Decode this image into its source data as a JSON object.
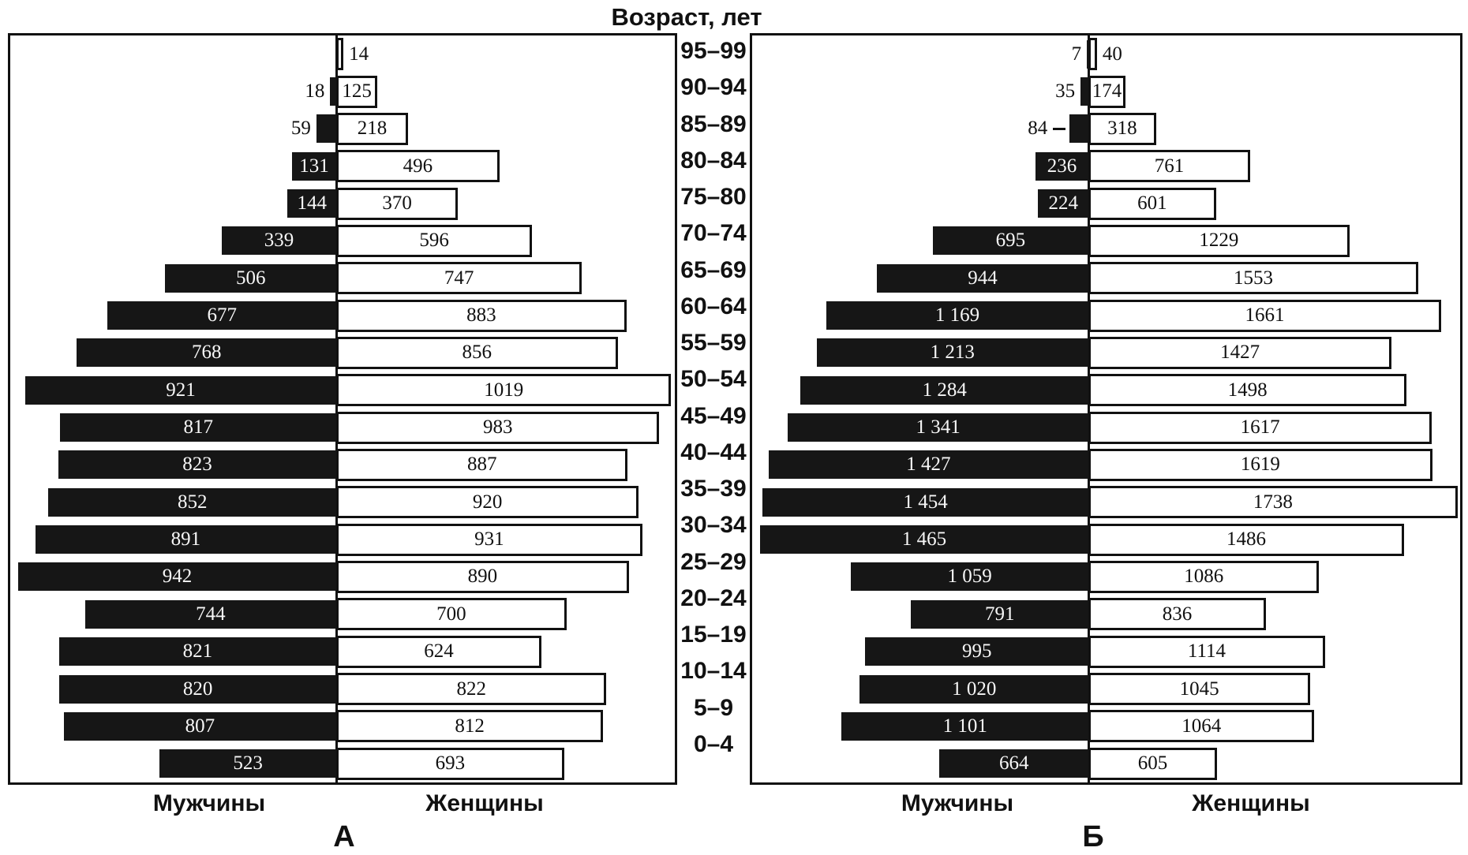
{
  "title": "Возраст, лет",
  "age_groups": [
    "95–99",
    "90–94",
    "85–89",
    "80–84",
    "75–80",
    "70–74",
    "65–69",
    "60–64",
    "55–59",
    "50–54",
    "45–49",
    "40–44",
    "35–39",
    "30–34",
    "25–29",
    "20–24",
    "15–19",
    "10–14",
    "5–9",
    "0–4"
  ],
  "panels": [
    {
      "letter": "А",
      "men_label": "Мужчины",
      "women_label": "Женщины",
      "axis_pct": 49.06,
      "men_full_scale": 965,
      "women_full_scale": 1030,
      "rows": [
        {
          "age": "95–99",
          "men": null,
          "men_text": null,
          "men_outside": false,
          "leader": false,
          "women": 14,
          "women_text": "14",
          "women_outside": true
        },
        {
          "age": "90–94",
          "men": 18,
          "men_text": "18",
          "men_outside": true,
          "leader": false,
          "women": 125,
          "women_text": "125",
          "women_outside": false
        },
        {
          "age": "85–89",
          "men": 59,
          "men_text": "59",
          "men_outside": true,
          "leader": false,
          "women": 218,
          "women_text": "218",
          "women_outside": false
        },
        {
          "age": "80–84",
          "men": 131,
          "men_text": "131",
          "men_outside": false,
          "leader": false,
          "women": 496,
          "women_text": "496",
          "women_outside": false
        },
        {
          "age": "75–80",
          "men": 144,
          "men_text": "144",
          "men_outside": false,
          "leader": false,
          "women": 370,
          "women_text": "370",
          "women_outside": false
        },
        {
          "age": "70–74",
          "men": 339,
          "men_text": "339",
          "men_outside": false,
          "leader": false,
          "women": 596,
          "women_text": "596",
          "women_outside": false
        },
        {
          "age": "65–69",
          "men": 506,
          "men_text": "506",
          "men_outside": false,
          "leader": false,
          "women": 747,
          "women_text": "747",
          "women_outside": false
        },
        {
          "age": "60–64",
          "men": 677,
          "men_text": "677",
          "men_outside": false,
          "leader": false,
          "women": 883,
          "women_text": "883",
          "women_outside": false
        },
        {
          "age": "55–59",
          "men": 768,
          "men_text": "768",
          "men_outside": false,
          "leader": false,
          "women": 856,
          "women_text": "856",
          "women_outside": false
        },
        {
          "age": "50–54",
          "men": 921,
          "men_text": "921",
          "men_outside": false,
          "leader": false,
          "women": 1019,
          "women_text": "1019",
          "women_outside": false
        },
        {
          "age": "45–49",
          "men": 817,
          "men_text": "817",
          "men_outside": false,
          "leader": false,
          "women": 983,
          "women_text": "983",
          "women_outside": false
        },
        {
          "age": "40–44",
          "men": 823,
          "men_text": "823",
          "men_outside": false,
          "leader": false,
          "women": 887,
          "women_text": "887",
          "women_outside": false
        },
        {
          "age": "35–39",
          "men": 852,
          "men_text": "852",
          "men_outside": false,
          "leader": false,
          "women": 920,
          "women_text": "920",
          "women_outside": false
        },
        {
          "age": "30–34",
          "men": 891,
          "men_text": "891",
          "men_outside": false,
          "leader": false,
          "women": 931,
          "women_text": "931",
          "women_outside": false
        },
        {
          "age": "25–29",
          "men": 942,
          "men_text": "942",
          "men_outside": false,
          "leader": false,
          "women": 890,
          "women_text": "890",
          "women_outside": false
        },
        {
          "age": "20–24",
          "men": 744,
          "men_text": "744",
          "men_outside": false,
          "leader": false,
          "women": 700,
          "women_text": "700",
          "women_outside": false
        },
        {
          "age": "15–19",
          "men": 821,
          "men_text": "821",
          "men_outside": false,
          "leader": false,
          "women": 624,
          "women_text": "624",
          "women_outside": false
        },
        {
          "age": "10–14",
          "men": 820,
          "men_text": "820",
          "men_outside": false,
          "leader": false,
          "women": 822,
          "women_text": "822",
          "women_outside": false
        },
        {
          "age": "5–9",
          "men": 807,
          "men_text": "807",
          "men_outside": false,
          "leader": false,
          "women": 812,
          "women_text": "812",
          "women_outside": false
        },
        {
          "age": "0–4",
          "men": 523,
          "men_text": "523",
          "men_outside": false,
          "leader": false,
          "women": 693,
          "women_text": "693",
          "women_outside": false
        }
      ]
    },
    {
      "letter": "Б",
      "men_label": "Мужчины",
      "women_label": "Женщины",
      "axis_pct": 47.5,
      "men_full_scale": 1500,
      "women_full_scale": 1750,
      "rows": [
        {
          "age": "95–99",
          "men": 7,
          "men_text": "7",
          "men_outside": true,
          "leader": false,
          "women": 40,
          "women_text": "40",
          "women_outside": true
        },
        {
          "age": "90–94",
          "men": 35,
          "men_text": "35",
          "men_outside": true,
          "leader": false,
          "women": 174,
          "women_text": "174",
          "women_outside": false
        },
        {
          "age": "85–89",
          "men": 84,
          "men_text": "84",
          "men_outside": true,
          "leader": true,
          "women": 318,
          "women_text": "318",
          "women_outside": false
        },
        {
          "age": "80–84",
          "men": 236,
          "men_text": "236",
          "men_outside": false,
          "leader": false,
          "women": 761,
          "women_text": "761",
          "women_outside": false
        },
        {
          "age": "75–80",
          "men": 224,
          "men_text": "224",
          "men_outside": false,
          "leader": false,
          "women": 601,
          "women_text": "601",
          "women_outside": false
        },
        {
          "age": "70–74",
          "men": 695,
          "men_text": "695",
          "men_outside": false,
          "leader": false,
          "women": 1229,
          "women_text": "1229",
          "women_outside": false
        },
        {
          "age": "65–69",
          "men": 944,
          "men_text": "944",
          "men_outside": false,
          "leader": false,
          "women": 1553,
          "women_text": "1553",
          "women_outside": false
        },
        {
          "age": "60–64",
          "men": 1169,
          "men_text": "1 169",
          "men_outside": false,
          "leader": false,
          "women": 1661,
          "women_text": "1661",
          "women_outside": false
        },
        {
          "age": "55–59",
          "men": 1213,
          "men_text": "1 213",
          "men_outside": false,
          "leader": false,
          "women": 1427,
          "women_text": "1427",
          "women_outside": false
        },
        {
          "age": "50–54",
          "men": 1284,
          "men_text": "1 284",
          "men_outside": false,
          "leader": false,
          "women": 1498,
          "women_text": "1498",
          "women_outside": false
        },
        {
          "age": "45–49",
          "men": 1341,
          "men_text": "1 341",
          "men_outside": false,
          "leader": false,
          "women": 1617,
          "women_text": "1617",
          "women_outside": false
        },
        {
          "age": "40–44",
          "men": 1427,
          "men_text": "1 427",
          "men_outside": false,
          "leader": false,
          "women": 1619,
          "women_text": "1619",
          "women_outside": false
        },
        {
          "age": "35–39",
          "men": 1454,
          "men_text": "1 454",
          "men_outside": false,
          "leader": false,
          "women": 1738,
          "women_text": "1738",
          "women_outside": false
        },
        {
          "age": "30–34",
          "men": 1465,
          "men_text": "1 465",
          "men_outside": false,
          "leader": false,
          "women": 1486,
          "women_text": "1486",
          "women_outside": false
        },
        {
          "age": "25–29",
          "men": 1059,
          "men_text": "1 059",
          "men_outside": false,
          "leader": false,
          "women": 1086,
          "women_text": "1086",
          "women_outside": false
        },
        {
          "age": "20–24",
          "men": 791,
          "men_text": "791",
          "men_outside": false,
          "leader": false,
          "women": 836,
          "women_text": "836",
          "women_outside": false
        },
        {
          "age": "15–19",
          "men": 995,
          "men_text": "995",
          "men_outside": false,
          "leader": false,
          "women": 1114,
          "women_text": "1114",
          "women_outside": false
        },
        {
          "age": "10–14",
          "men": 1020,
          "men_text": "1 020",
          "men_outside": false,
          "leader": false,
          "women": 1045,
          "women_text": "1045",
          "women_outside": false
        },
        {
          "age": "5–9",
          "men": 1101,
          "men_text": "1 101",
          "men_outside": false,
          "leader": false,
          "women": 1064,
          "women_text": "1064",
          "women_outside": false
        },
        {
          "age": "0–4",
          "men": 664,
          "men_text": "664",
          "men_outside": false,
          "leader": false,
          "women": 605,
          "women_text": "605",
          "women_outside": false
        }
      ]
    }
  ],
  "colors": {
    "men_bar": "#161616",
    "women_bar_fill": "#ffffff",
    "stroke": "#111111"
  },
  "chart_data": [
    {
      "type": "bar",
      "variant": "population-pyramid",
      "panel": "А",
      "title": "Возраст, лет",
      "categories": [
        "95–99",
        "90–94",
        "85–89",
        "80–84",
        "75–80",
        "70–74",
        "65–69",
        "60–64",
        "55–59",
        "50–54",
        "45–49",
        "40–44",
        "35–39",
        "30–34",
        "25–29",
        "20–24",
        "15–19",
        "10–14",
        "5–9",
        "0–4"
      ],
      "series": [
        {
          "name": "Мужчины",
          "side": "left",
          "values": [
            null,
            18,
            59,
            131,
            144,
            339,
            506,
            677,
            768,
            921,
            817,
            823,
            852,
            891,
            942,
            744,
            821,
            820,
            807,
            523
          ]
        },
        {
          "name": "Женщины",
          "side": "right",
          "values": [
            14,
            125,
            218,
            496,
            370,
            596,
            747,
            883,
            856,
            1019,
            983,
            887,
            920,
            931,
            890,
            700,
            624,
            822,
            812,
            693
          ]
        }
      ],
      "value_labels": "shown on every bar",
      "xlim_left": [
        0,
        965
      ],
      "xlim_right": [
        0,
        1030
      ],
      "grid": false,
      "legend": "none"
    },
    {
      "type": "bar",
      "variant": "population-pyramid",
      "panel": "Б",
      "title": "Возраст, лет",
      "categories": [
        "95–99",
        "90–94",
        "85–89",
        "80–84",
        "75–80",
        "70–74",
        "65–69",
        "60–64",
        "55–59",
        "50–54",
        "45–49",
        "40–44",
        "35–39",
        "30–34",
        "25–29",
        "20–24",
        "15–19",
        "10–14",
        "5–9",
        "0–4"
      ],
      "series": [
        {
          "name": "Мужчины",
          "side": "left",
          "values": [
            7,
            35,
            84,
            236,
            224,
            695,
            944,
            1169,
            1213,
            1284,
            1341,
            1427,
            1454,
            1465,
            1059,
            791,
            995,
            1020,
            1101,
            664
          ]
        },
        {
          "name": "Женщины",
          "side": "right",
          "values": [
            40,
            174,
            318,
            761,
            601,
            1229,
            1553,
            1661,
            1427,
            1498,
            1617,
            1619,
            1738,
            1486,
            1086,
            836,
            1114,
            1045,
            1064,
            605
          ]
        }
      ],
      "value_labels": "shown on every bar",
      "xlim_left": [
        0,
        1500
      ],
      "xlim_right": [
        0,
        1750
      ],
      "grid": false,
      "legend": "none"
    }
  ]
}
